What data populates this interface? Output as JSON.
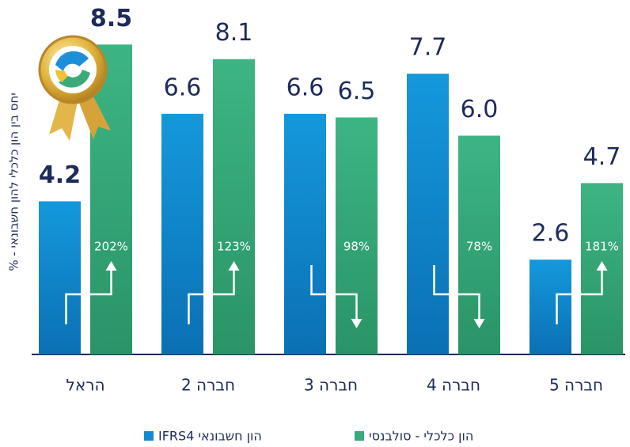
{
  "chart_data": {
    "type": "bar",
    "y_label": "יחס בין הון כלכלי להון חשבונאי - %",
    "categories": [
      "הראל",
      "חברה 2",
      "חברה 3",
      "חברה 4",
      "חברה 5"
    ],
    "series": [
      {
        "name": "הון חשבונאי IFRS4",
        "color": "#138bd3",
        "values": [
          4.2,
          6.6,
          6.6,
          7.7,
          2.6
        ],
        "value_labels": [
          "4.2",
          "6.6",
          "6.6",
          "7.7",
          "2.6"
        ]
      },
      {
        "name": "הון כלכלי - סולבנסי",
        "color": "#37ab7b",
        "values": [
          8.5,
          8.1,
          6.5,
          6.0,
          4.7
        ],
        "value_labels": [
          "8.5",
          "8.1",
          "6.5",
          "6.0",
          "4.7"
        ]
      }
    ],
    "ratios": [
      202,
      123,
      98,
      78,
      181
    ],
    "ratio_labels": [
      "202%",
      "123%",
      "98%",
      "78%",
      "181%"
    ],
    "ylim": [
      0,
      9.7
    ]
  }
}
